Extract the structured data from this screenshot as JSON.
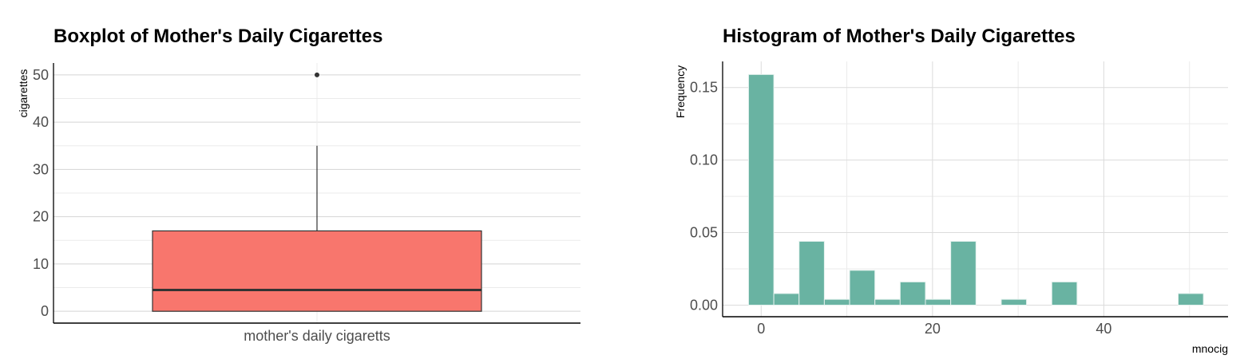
{
  "chart_data": [
    {
      "type": "box",
      "title": "Boxplot of Mother's Daily Cigarettes",
      "xlabel": "",
      "ylabel": "cigarettes",
      "categories": [
        "mother's daily cigaretts"
      ],
      "ylim": [
        -2.5,
        52.5
      ],
      "yticks": [
        0,
        10,
        20,
        30,
        40,
        50
      ],
      "box": {
        "min": 0,
        "q1": 0,
        "median": 4.5,
        "q3": 17,
        "max": 35,
        "outliers": [
          50
        ]
      },
      "fill_color": "#f8766d",
      "grid": true
    },
    {
      "type": "bar",
      "title": "Histogram of Mother's Daily Cigarettes",
      "xlabel": "mnocig",
      "ylabel": "Frequency",
      "xlim": [
        -4.5,
        54.5
      ],
      "ylim": [
        -0.008,
        0.168
      ],
      "xticks": [
        0,
        20,
        40
      ],
      "yticks": [
        0.0,
        0.05,
        0.1,
        0.15
      ],
      "bin_width": 2.95,
      "bin_centers": [
        0,
        2.95,
        5.9,
        8.85,
        11.8,
        14.75,
        17.7,
        20.65,
        23.6,
        26.55,
        29.5,
        32.45,
        35.4,
        38.35,
        41.3,
        44.25,
        47.2,
        50.15
      ],
      "values": [
        0.159,
        0.008,
        0.044,
        0.004,
        0.024,
        0.004,
        0.016,
        0.004,
        0.044,
        0.0,
        0.004,
        0.0,
        0.016,
        0.0,
        0.0,
        0.0,
        0.0,
        0.008
      ],
      "fill_color": "#69b3a2",
      "grid": true
    }
  ]
}
